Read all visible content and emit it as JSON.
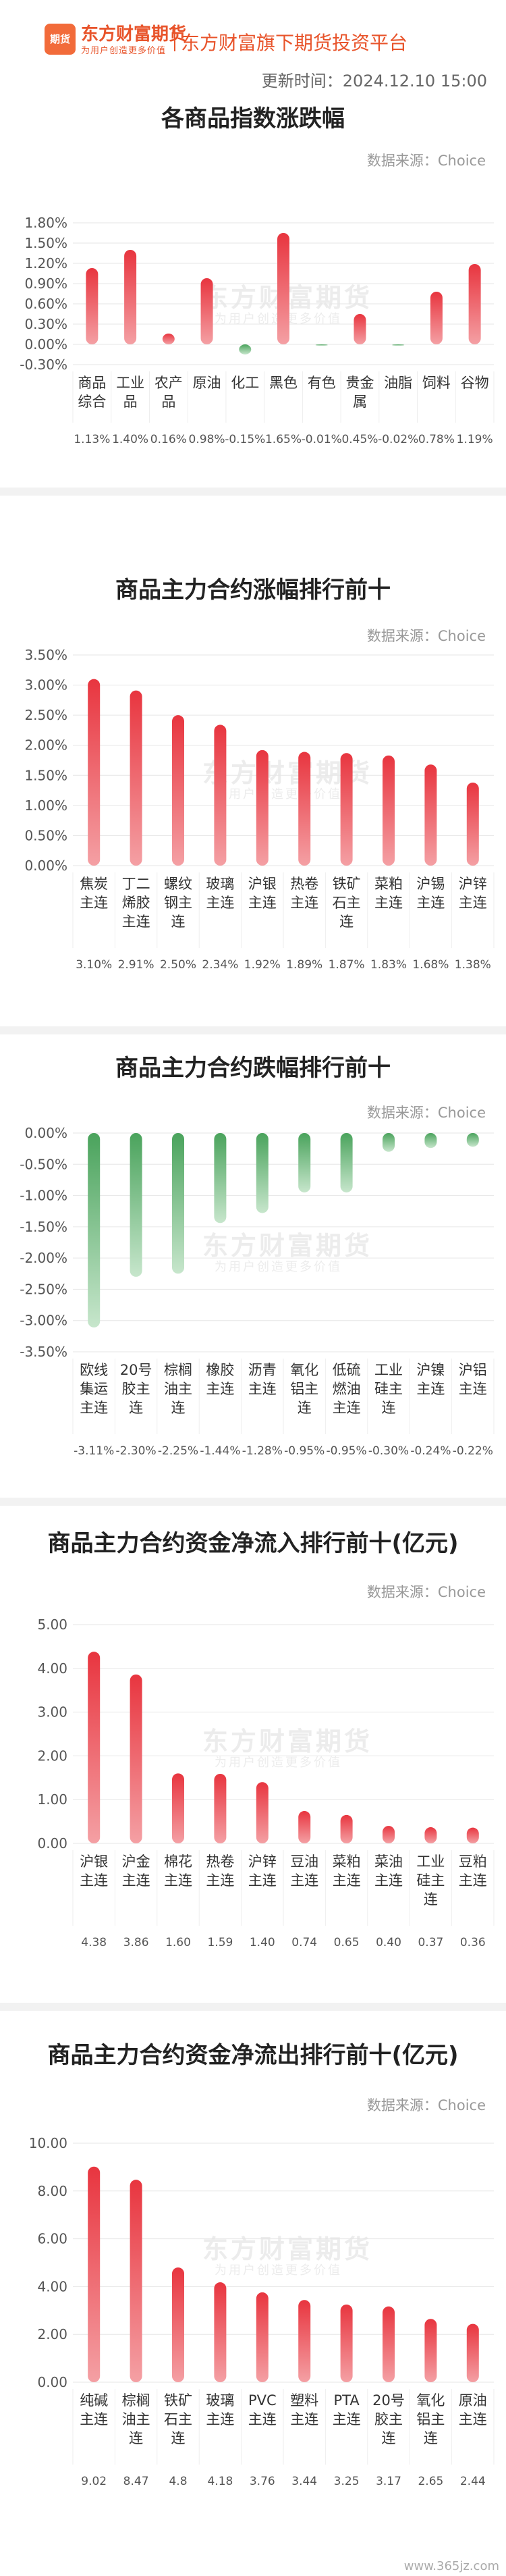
{
  "header": {
    "logo_badge": "期货",
    "logo_name": "东方财富期货",
    "logo_slogan": "为用户创造更多价值",
    "platform": "东方财富旗下期货投资平台",
    "update_time": "更新时间：2024.12.10 15:00"
  },
  "watermark": {
    "name": "东方财富期货",
    "slogan": "为用户创造更多价值"
  },
  "footer": {
    "site": "www.365jz.com"
  },
  "colors": {
    "up_top": "#f4a0a4",
    "up_bottom": "#e8353f",
    "down_top": "#4aa35c",
    "down_bottom": "#c7e6cc",
    "axis_text": "#555555",
    "grid": "#e6e6e6"
  },
  "chart_data": [
    {
      "type": "bar",
      "title": "各商品指数涨跌幅",
      "source": "数据来源：Choice",
      "categories": [
        "商品综合",
        "工业品",
        "农产品",
        "原油",
        "化工",
        "黑色",
        "有色",
        "贵金属",
        "油脂",
        "饲料",
        "谷物"
      ],
      "category_lines": [
        [
          "商品",
          "综合"
        ],
        [
          "工业",
          "品"
        ],
        [
          "农产",
          "品"
        ],
        [
          "原油"
        ],
        [
          "化工"
        ],
        [
          "黑色"
        ],
        [
          "有色"
        ],
        [
          "贵金",
          "属"
        ],
        [
          "油脂"
        ],
        [
          "饲料"
        ],
        [
          "谷物"
        ]
      ],
      "values": [
        1.13,
        1.4,
        0.16,
        0.98,
        -0.15,
        1.65,
        -0.01,
        0.45,
        -0.02,
        0.78,
        1.19
      ],
      "value_labels": [
        "1.13%",
        "1.40%",
        "0.16%",
        "0.98%",
        "-0.15%",
        "1.65%",
        "-0.01%",
        "0.45%",
        "-0.02%",
        "0.78%",
        "1.19%"
      ],
      "yticks": [
        -0.3,
        0,
        0.3,
        0.6,
        0.9,
        1.2,
        1.5,
        1.8
      ],
      "ytick_labels": [
        "-0.30%",
        "0.00%",
        "0.30%",
        "0.60%",
        "0.90%",
        "1.20%",
        "1.50%",
        "1.80%"
      ],
      "ylim": [
        -0.3,
        1.8
      ],
      "grid": true
    },
    {
      "type": "bar",
      "title": "商品主力合约涨幅排行前十",
      "source": "数据来源：Choice",
      "categories": [
        "焦炭主连",
        "丁二烯胶主连",
        "螺纹钢主连",
        "玻璃主连",
        "沪银主连",
        "热卷主连",
        "铁矿石主连",
        "菜粕主连",
        "沪锡主连",
        "沪锌主连"
      ],
      "category_lines": [
        [
          "焦炭",
          "主连"
        ],
        [
          "丁二",
          "烯胶",
          "主连"
        ],
        [
          "螺纹",
          "钢主",
          "连"
        ],
        [
          "玻璃",
          "主连"
        ],
        [
          "沪银",
          "主连"
        ],
        [
          "热卷",
          "主连"
        ],
        [
          "铁矿",
          "石主",
          "连"
        ],
        [
          "菜粕",
          "主连"
        ],
        [
          "沪锡",
          "主连"
        ],
        [
          "沪锌",
          "主连"
        ]
      ],
      "values": [
        3.1,
        2.91,
        2.5,
        2.34,
        1.92,
        1.89,
        1.87,
        1.83,
        1.68,
        1.38
      ],
      "value_labels": [
        "3.10%",
        "2.91%",
        "2.50%",
        "2.34%",
        "1.92%",
        "1.89%",
        "1.87%",
        "1.83%",
        "1.68%",
        "1.38%"
      ],
      "yticks": [
        0,
        0.5,
        1.0,
        1.5,
        2.0,
        2.5,
        3.0,
        3.5
      ],
      "ytick_labels": [
        "0.00%",
        "0.50%",
        "1.00%",
        "1.50%",
        "2.00%",
        "2.50%",
        "3.00%",
        "3.50%"
      ],
      "ylim": [
        0,
        3.5
      ],
      "grid": true
    },
    {
      "type": "bar",
      "title": "商品主力合约跌幅排行前十",
      "source": "数据来源：Choice",
      "categories": [
        "欧线集运主连",
        "20号胶主连",
        "棕榈油主连",
        "橡胶主连",
        "沥青主连",
        "氧化铝主连",
        "低硫燃油主连",
        "工业硅主连",
        "沪镍主连",
        "沪铝主连"
      ],
      "category_lines": [
        [
          "欧线",
          "集运",
          "主连"
        ],
        [
          "20号",
          "胶主",
          "连"
        ],
        [
          "棕榈",
          "油主",
          "连"
        ],
        [
          "橡胶",
          "主连"
        ],
        [
          "沥青",
          "主连"
        ],
        [
          "氧化",
          "铝主",
          "连"
        ],
        [
          "低硫",
          "燃油",
          "主连"
        ],
        [
          "工业",
          "硅主",
          "连"
        ],
        [
          "沪镍",
          "主连"
        ],
        [
          "沪铝",
          "主连"
        ]
      ],
      "values": [
        -3.11,
        -2.3,
        -2.25,
        -1.44,
        -1.28,
        -0.95,
        -0.95,
        -0.3,
        -0.24,
        -0.22
      ],
      "value_labels": [
        "-3.11%",
        "-2.30%",
        "-2.25%",
        "-1.44%",
        "-1.28%",
        "-0.95%",
        "-0.95%",
        "-0.30%",
        "-0.24%",
        "-0.22%"
      ],
      "yticks": [
        0,
        -0.5,
        -1.0,
        -1.5,
        -2.0,
        -2.5,
        -3.0,
        -3.5
      ],
      "ytick_labels": [
        "0.00%",
        "-0.50%",
        "-1.00%",
        "-1.50%",
        "-2.00%",
        "-2.50%",
        "-3.00%",
        "-3.50%"
      ],
      "ylim": [
        -3.5,
        0
      ],
      "grid": true
    },
    {
      "type": "bar",
      "title": "商品主力合约资金净流入排行前十(亿元)",
      "source": "数据来源：Choice",
      "categories": [
        "沪银主连",
        "沪金主连",
        "棉花主连",
        "热卷主连",
        "沪锌主连",
        "豆油主连",
        "菜粕主连",
        "菜油主连",
        "工业硅主连",
        "豆粕主连"
      ],
      "category_lines": [
        [
          "沪银",
          "主连"
        ],
        [
          "沪金",
          "主连"
        ],
        [
          "棉花",
          "主连"
        ],
        [
          "热卷",
          "主连"
        ],
        [
          "沪锌",
          "主连"
        ],
        [
          "豆油",
          "主连"
        ],
        [
          "菜粕",
          "主连"
        ],
        [
          "菜油",
          "主连"
        ],
        [
          "工业",
          "硅主",
          "连"
        ],
        [
          "豆粕",
          "主连"
        ]
      ],
      "values": [
        4.38,
        3.86,
        1.6,
        1.59,
        1.4,
        0.74,
        0.65,
        0.4,
        0.37,
        0.36
      ],
      "value_labels": [
        "4.38",
        "3.86",
        "1.60",
        "1.59",
        "1.40",
        "0.74",
        "0.65",
        "0.40",
        "0.37",
        "0.36"
      ],
      "yticks": [
        0,
        1,
        2,
        3,
        4,
        5
      ],
      "ytick_labels": [
        "0.00",
        "1.00",
        "2.00",
        "3.00",
        "4.00",
        "5.00"
      ],
      "ylim": [
        0,
        5
      ],
      "grid": true
    },
    {
      "type": "bar",
      "title": "商品主力合约资金净流出排行前十(亿元)",
      "source": "数据来源：Choice",
      "categories": [
        "纯碱主连",
        "棕榈油主连",
        "铁矿石主连",
        "玻璃主连",
        "PVC主连",
        "塑料主连",
        "PTA主连",
        "20号胶主连",
        "氧化铝主连",
        "原油主连"
      ],
      "category_lines": [
        [
          "纯碱",
          "主连"
        ],
        [
          "棕榈",
          "油主",
          "连"
        ],
        [
          "铁矿",
          "石主",
          "连"
        ],
        [
          "玻璃",
          "主连"
        ],
        [
          "PVC",
          "主连"
        ],
        [
          "塑料",
          "主连"
        ],
        [
          "PTA",
          "主连"
        ],
        [
          "20号",
          "胶主",
          "连"
        ],
        [
          "氧化",
          "铝主",
          "连"
        ],
        [
          "原油",
          "主连"
        ]
      ],
      "values": [
        9.02,
        8.47,
        4.8,
        4.18,
        3.76,
        3.44,
        3.25,
        3.17,
        2.65,
        2.44
      ],
      "value_labels": [
        "9.02",
        "8.47",
        "4.8",
        "4.18",
        "3.76",
        "3.44",
        "3.25",
        "3.17",
        "2.65",
        "2.44"
      ],
      "yticks": [
        0,
        2,
        4,
        6,
        8,
        10
      ],
      "ytick_labels": [
        "0.00",
        "2.00",
        "4.00",
        "6.00",
        "8.00",
        "10.00"
      ],
      "ylim": [
        0,
        10
      ],
      "grid": true
    }
  ]
}
